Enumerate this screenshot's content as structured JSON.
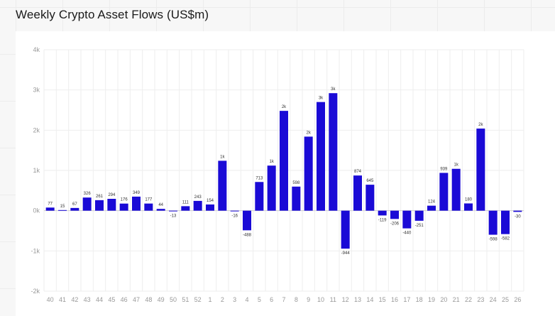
{
  "chart_data": {
    "type": "bar",
    "title": "Weekly Crypto Asset Flows (US$m)",
    "xlabel": "",
    "ylabel": "",
    "ylim": [
      -2000,
      4000
    ],
    "yticks": [
      {
        "value": 4000,
        "label": "4k"
      },
      {
        "value": 3000,
        "label": "3k"
      },
      {
        "value": 2000,
        "label": "2k"
      },
      {
        "value": 1000,
        "label": "1k"
      },
      {
        "value": 0,
        "label": "0k"
      },
      {
        "value": -1000,
        "label": "-1k"
      },
      {
        "value": -2000,
        "label": "-2k"
      }
    ],
    "grid": true,
    "legend": "none",
    "bar_color": "#1a0ad6",
    "categories": [
      "40",
      "41",
      "42",
      "43",
      "44",
      "45",
      "46",
      "47",
      "48",
      "49",
      "50",
      "51",
      "52",
      "1",
      "2",
      "3",
      "4",
      "5",
      "6",
      "7",
      "8",
      "9",
      "10",
      "11",
      "12",
      "13",
      "14",
      "15",
      "16",
      "17",
      "18",
      "19",
      "20",
      "21",
      "22",
      "23",
      "24",
      "25",
      "26"
    ],
    "values": [
      77,
      15,
      67,
      326,
      261,
      294,
      176,
      349,
      177,
      44,
      -13,
      111,
      243,
      154,
      1240,
      -16,
      -488,
      713,
      1120,
      2480,
      598,
      1840,
      2700,
      2920,
      -944,
      874,
      645,
      -119,
      -206,
      -440,
      -251,
      124,
      939,
      1040,
      180,
      2040,
      -598,
      -582,
      -30
    ],
    "data_labels": [
      "77",
      "15",
      "67",
      "326",
      "261",
      "294",
      "176",
      "349",
      "177",
      "44",
      "-13",
      "111",
      "243",
      "154",
      "1k",
      "-16",
      "-488",
      "713",
      "1k",
      "2k",
      "598",
      "2k",
      "3k",
      "3k",
      "-944",
      "874",
      "645",
      "-119",
      "-206",
      "-440",
      "-251",
      "124",
      "939",
      "1k",
      "180",
      "2k",
      "-598",
      "-582",
      "-30"
    ]
  }
}
